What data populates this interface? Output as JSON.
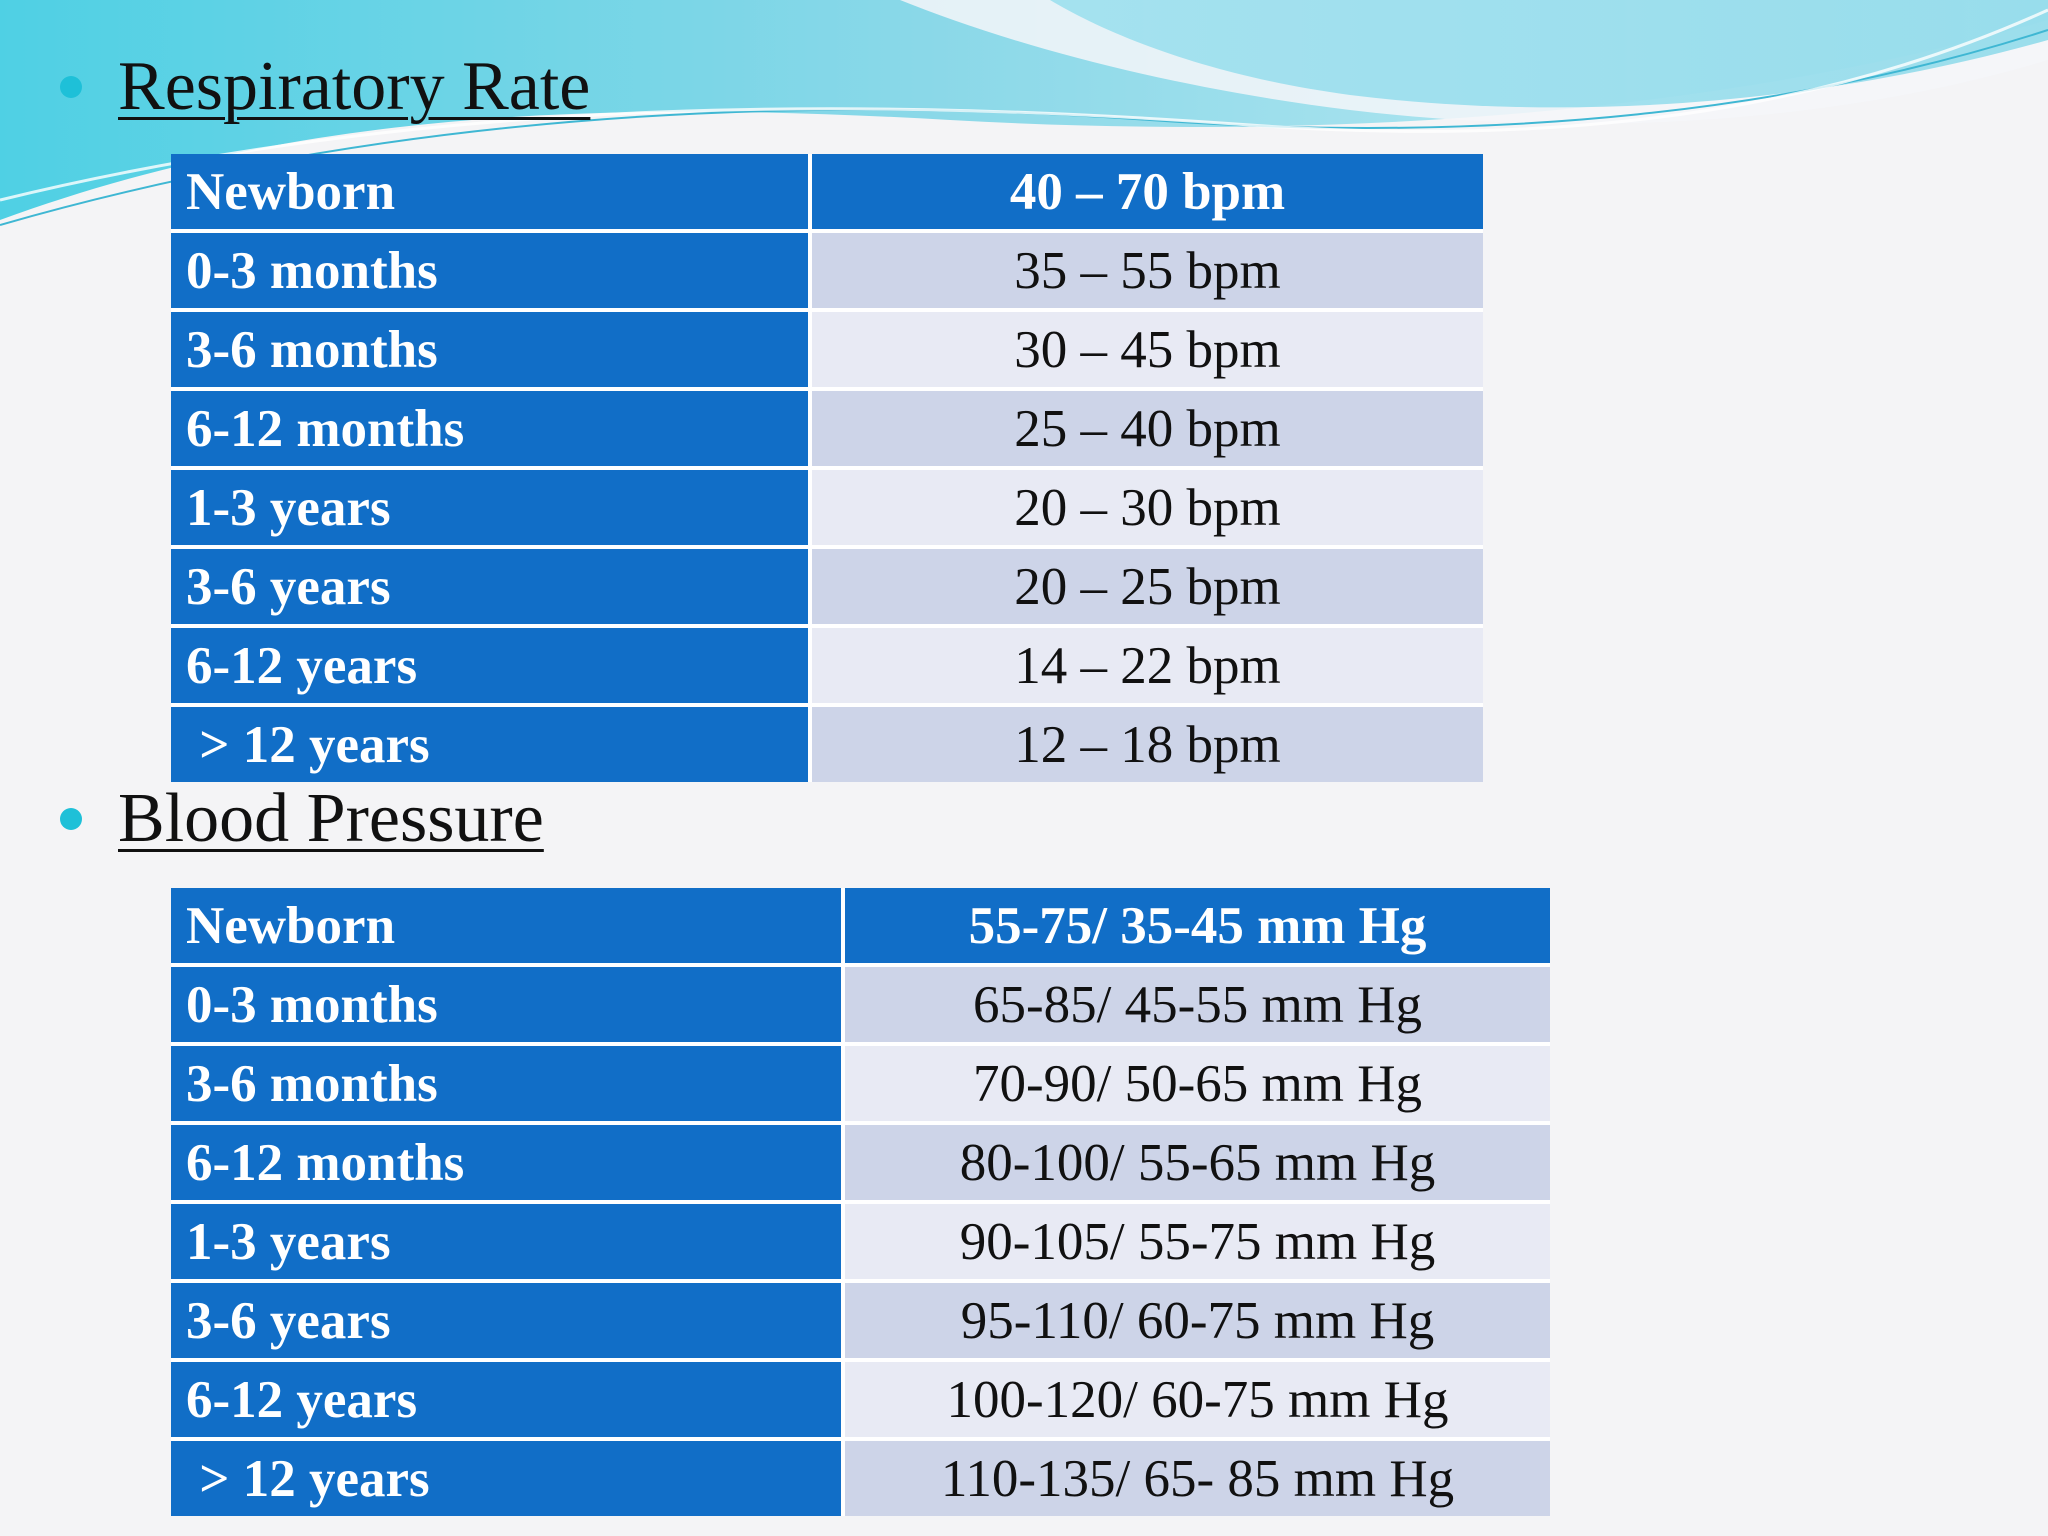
{
  "colors": {
    "header_blue": "#116ec7",
    "row_light": "#e8eaf4",
    "row_dark": "#cdd4e8",
    "bullet": "#1ec0d8"
  },
  "respiratory": {
    "heading": "Respiratory  Rate",
    "rows": [
      {
        "age": "Newborn",
        "value": "40 – 70 bpm"
      },
      {
        "age": "0-3 months",
        "value": "35 – 55 bpm"
      },
      {
        "age": "3-6 months",
        "value": "30 – 45 bpm"
      },
      {
        "age": "6-12 months",
        "value": "25 – 40 bpm"
      },
      {
        "age": "1-3 years",
        "value": "20 – 30 bpm"
      },
      {
        "age": "3-6 years",
        "value": "20 – 25 bpm"
      },
      {
        "age": "6-12 years",
        "value": "14 – 22 bpm"
      },
      {
        "age": " > 12 years",
        "value": "12 – 18 bpm"
      }
    ]
  },
  "blood_pressure": {
    "heading": "Blood Pressure",
    "rows": [
      {
        "age": "Newborn",
        "value": "55-75/ 35-45 mm Hg"
      },
      {
        "age": "0-3 months",
        "value": "65-85/ 45-55 mm Hg"
      },
      {
        "age": "3-6 months",
        "value": "70-90/ 50-65 mm Hg"
      },
      {
        "age": "6-12 months",
        "value": "80-100/ 55-65 mm Hg"
      },
      {
        "age": "1-3 years",
        "value": "90-105/ 55-75 mm Hg"
      },
      {
        "age": "3-6 years",
        "value": "95-110/ 60-75 mm Hg"
      },
      {
        "age": "6-12 years",
        "value": "100-120/ 60-75 mm Hg"
      },
      {
        "age": " > 12 years",
        "value": "110-135/ 65- 85 mm Hg"
      }
    ]
  }
}
